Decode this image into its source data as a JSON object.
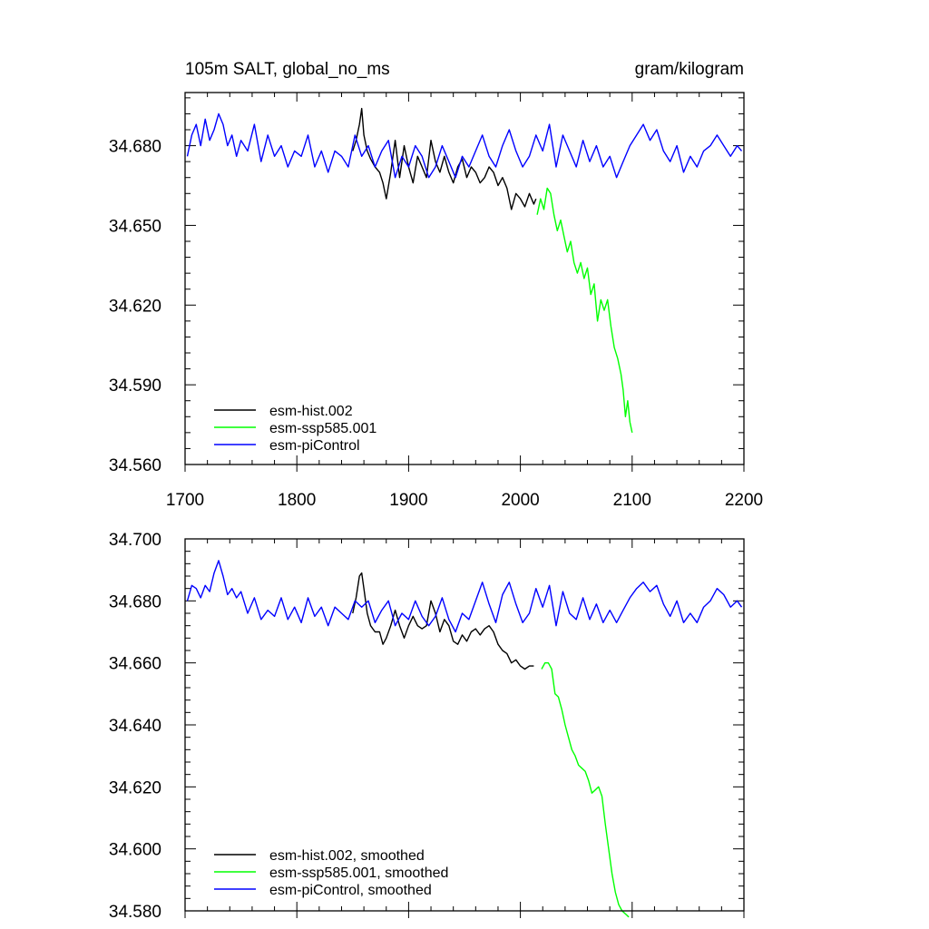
{
  "chart_data": [
    {
      "type": "line",
      "title": "105m SALT, global_no_ms",
      "units": "gram/kilogram",
      "xlim": [
        1700,
        2200
      ],
      "ylim": [
        34.56,
        34.7
      ],
      "xticks": [
        1700,
        1800,
        1900,
        2000,
        2100,
        2200
      ],
      "yticks": [
        34.56,
        34.59,
        34.62,
        34.65,
        34.68
      ],
      "ytick_labels": [
        "34.560",
        "34.590",
        "34.620",
        "34.650",
        "34.680"
      ],
      "legend_position": "bottom-left",
      "series": [
        {
          "name": "esm-hist.002",
          "color": "#000000",
          "x": [
            1850,
            1853,
            1856,
            1858,
            1860,
            1863,
            1866,
            1870,
            1874,
            1877,
            1880,
            1884,
            1888,
            1892,
            1896,
            1900,
            1904,
            1908,
            1912,
            1916,
            1920,
            1924,
            1928,
            1932,
            1936,
            1940,
            1944,
            1948,
            1952,
            1956,
            1960,
            1964,
            1968,
            1972,
            1976,
            1980,
            1984,
            1988,
            1992,
            1996,
            2000,
            2004,
            2008,
            2012,
            2014
          ],
          "values": [
            34.678,
            34.682,
            34.688,
            34.694,
            34.684,
            34.678,
            34.675,
            34.672,
            34.67,
            34.666,
            34.66,
            34.67,
            34.682,
            34.668,
            34.68,
            34.672,
            34.666,
            34.676,
            34.672,
            34.668,
            34.682,
            34.674,
            34.67,
            34.676,
            34.67,
            34.666,
            34.672,
            34.675,
            34.668,
            34.672,
            34.67,
            34.666,
            34.668,
            34.672,
            34.67,
            34.665,
            34.668,
            34.664,
            34.656,
            34.662,
            34.66,
            34.657,
            34.662,
            34.658,
            34.66
          ]
        },
        {
          "name": "esm-ssp585.001",
          "color": "#00ff00",
          "x": [
            2015,
            2018,
            2021,
            2024,
            2027,
            2030,
            2033,
            2036,
            2039,
            2042,
            2045,
            2048,
            2051,
            2054,
            2057,
            2060,
            2063,
            2066,
            2069,
            2072,
            2075,
            2078,
            2081,
            2084,
            2087,
            2090,
            2092,
            2094,
            2096,
            2098,
            2100
          ],
          "values": [
            34.654,
            34.66,
            34.656,
            34.664,
            34.662,
            34.654,
            34.648,
            34.652,
            34.646,
            34.64,
            34.644,
            34.636,
            34.632,
            34.636,
            34.63,
            34.634,
            34.624,
            34.628,
            34.614,
            34.622,
            34.618,
            34.622,
            34.612,
            34.604,
            34.6,
            34.594,
            34.588,
            34.578,
            34.584,
            34.576,
            34.572
          ]
        },
        {
          "name": "esm-piControl",
          "color": "#0000ff",
          "x": [
            1702,
            1706,
            1710,
            1714,
            1718,
            1722,
            1726,
            1730,
            1734,
            1738,
            1742,
            1746,
            1750,
            1756,
            1762,
            1768,
            1774,
            1780,
            1786,
            1792,
            1798,
            1804,
            1810,
            1816,
            1822,
            1828,
            1834,
            1840,
            1846,
            1852,
            1858,
            1864,
            1870,
            1876,
            1882,
            1888,
            1894,
            1900,
            1906,
            1912,
            1918,
            1924,
            1930,
            1936,
            1942,
            1948,
            1954,
            1960,
            1966,
            1972,
            1978,
            1984,
            1990,
            1996,
            2002,
            2008,
            2014,
            2020,
            2026,
            2032,
            2038,
            2044,
            2050,
            2056,
            2062,
            2068,
            2074,
            2080,
            2086,
            2092,
            2098,
            2104,
            2110,
            2116,
            2122,
            2128,
            2134,
            2140,
            2146,
            2152,
            2158,
            2164,
            2170,
            2176,
            2182,
            2188,
            2194,
            2198
          ],
          "values": [
            34.676,
            34.684,
            34.688,
            34.68,
            34.69,
            34.682,
            34.686,
            34.692,
            34.688,
            34.68,
            34.684,
            34.676,
            34.682,
            34.678,
            34.688,
            34.674,
            34.684,
            34.676,
            34.68,
            34.672,
            34.678,
            34.676,
            34.684,
            34.672,
            34.678,
            34.67,
            34.678,
            34.676,
            34.672,
            34.684,
            34.676,
            34.68,
            34.672,
            34.678,
            34.682,
            34.668,
            34.676,
            34.672,
            34.68,
            34.676,
            34.668,
            34.672,
            34.68,
            34.674,
            34.668,
            34.676,
            34.672,
            34.678,
            34.684,
            34.676,
            34.672,
            34.68,
            34.686,
            34.678,
            34.672,
            34.676,
            34.684,
            34.678,
            34.688,
            34.672,
            34.684,
            34.678,
            34.672,
            34.682,
            34.674,
            34.68,
            34.672,
            34.676,
            34.668,
            34.674,
            34.68,
            34.684,
            34.688,
            34.682,
            34.686,
            34.678,
            34.674,
            34.68,
            34.67,
            34.676,
            34.672,
            34.678,
            34.68,
            34.684,
            34.68,
            34.676,
            34.68,
            34.678
          ]
        }
      ]
    },
    {
      "type": "line",
      "xlim": [
        1700,
        2200
      ],
      "ylim": [
        34.58,
        34.7
      ],
      "yticks": [
        34.58,
        34.6,
        34.62,
        34.64,
        34.66,
        34.68,
        34.7
      ],
      "ytick_labels": [
        "34.580",
        "34.600",
        "34.620",
        "34.640",
        "34.660",
        "34.680",
        "34.700"
      ],
      "legend_position": "bottom-left",
      "series": [
        {
          "name": "esm-hist.002, smoothed",
          "color": "#000000",
          "x": [
            1850,
            1853,
            1856,
            1858,
            1860,
            1863,
            1866,
            1870,
            1874,
            1877,
            1880,
            1884,
            1888,
            1892,
            1896,
            1900,
            1904,
            1908,
            1912,
            1916,
            1920,
            1924,
            1928,
            1932,
            1936,
            1940,
            1944,
            1948,
            1952,
            1956,
            1960,
            1964,
            1968,
            1972,
            1976,
            1980,
            1984,
            1988,
            1992,
            1996,
            2000,
            2004,
            2008,
            2012
          ],
          "values": [
            34.676,
            34.681,
            34.688,
            34.689,
            34.684,
            34.676,
            34.672,
            34.67,
            34.67,
            34.666,
            34.668,
            34.672,
            34.677,
            34.672,
            34.668,
            34.672,
            34.675,
            34.672,
            34.671,
            34.672,
            34.68,
            34.676,
            34.67,
            34.674,
            34.672,
            34.667,
            34.666,
            34.669,
            34.667,
            34.67,
            34.671,
            34.669,
            34.671,
            34.672,
            34.67,
            34.666,
            34.664,
            34.663,
            34.66,
            34.661,
            34.659,
            34.658,
            34.659,
            34.659
          ]
        },
        {
          "name": "esm-ssp585.001, smoothed",
          "color": "#00ff00",
          "x": [
            2019,
            2022,
            2025,
            2028,
            2031,
            2034,
            2037,
            2040,
            2043,
            2046,
            2049,
            2052,
            2055,
            2058,
            2061,
            2064,
            2067,
            2070,
            2073,
            2076,
            2079,
            2082,
            2085,
            2088,
            2091,
            2094,
            2097
          ],
          "values": [
            34.658,
            34.66,
            34.66,
            34.658,
            34.65,
            34.649,
            34.645,
            34.64,
            34.636,
            34.632,
            34.63,
            34.627,
            34.626,
            34.625,
            34.622,
            34.618,
            34.619,
            34.62,
            34.617,
            34.608,
            34.6,
            34.592,
            34.586,
            34.582,
            34.58,
            34.579,
            34.578
          ]
        },
        {
          "name": "esm-piControl, smoothed",
          "color": "#0000ff",
          "x": [
            1702,
            1706,
            1710,
            1714,
            1718,
            1722,
            1726,
            1730,
            1734,
            1738,
            1742,
            1746,
            1750,
            1756,
            1762,
            1768,
            1774,
            1780,
            1786,
            1792,
            1798,
            1804,
            1810,
            1816,
            1822,
            1828,
            1834,
            1840,
            1846,
            1852,
            1858,
            1864,
            1870,
            1876,
            1882,
            1888,
            1894,
            1900,
            1906,
            1912,
            1918,
            1924,
            1930,
            1936,
            1942,
            1948,
            1954,
            1960,
            1966,
            1972,
            1978,
            1984,
            1990,
            1996,
            2002,
            2008,
            2014,
            2020,
            2026,
            2032,
            2038,
            2044,
            2050,
            2056,
            2062,
            2068,
            2074,
            2080,
            2086,
            2092,
            2098,
            2104,
            2110,
            2116,
            2122,
            2128,
            2134,
            2140,
            2146,
            2152,
            2158,
            2164,
            2170,
            2176,
            2182,
            2188,
            2194,
            2198
          ],
          "values": [
            34.68,
            34.685,
            34.684,
            34.681,
            34.685,
            34.683,
            34.689,
            34.693,
            34.688,
            34.682,
            34.684,
            34.681,
            34.683,
            34.676,
            34.681,
            34.674,
            34.677,
            34.675,
            34.681,
            34.674,
            34.678,
            34.673,
            34.681,
            34.675,
            34.678,
            34.672,
            34.678,
            34.676,
            34.674,
            34.68,
            34.678,
            34.68,
            34.673,
            34.677,
            34.68,
            34.672,
            34.676,
            34.674,
            34.68,
            34.675,
            34.672,
            34.675,
            34.681,
            34.674,
            34.67,
            34.676,
            34.674,
            34.68,
            34.686,
            34.679,
            34.673,
            34.682,
            34.686,
            34.679,
            34.673,
            34.676,
            34.684,
            34.678,
            34.685,
            34.672,
            34.683,
            34.676,
            34.674,
            34.681,
            34.674,
            34.679,
            34.673,
            34.677,
            34.673,
            34.677,
            34.681,
            34.684,
            34.686,
            34.683,
            34.685,
            34.679,
            34.675,
            34.68,
            34.673,
            34.676,
            34.673,
            34.678,
            34.68,
            34.684,
            34.682,
            34.678,
            34.68,
            34.678
          ]
        }
      ]
    }
  ]
}
